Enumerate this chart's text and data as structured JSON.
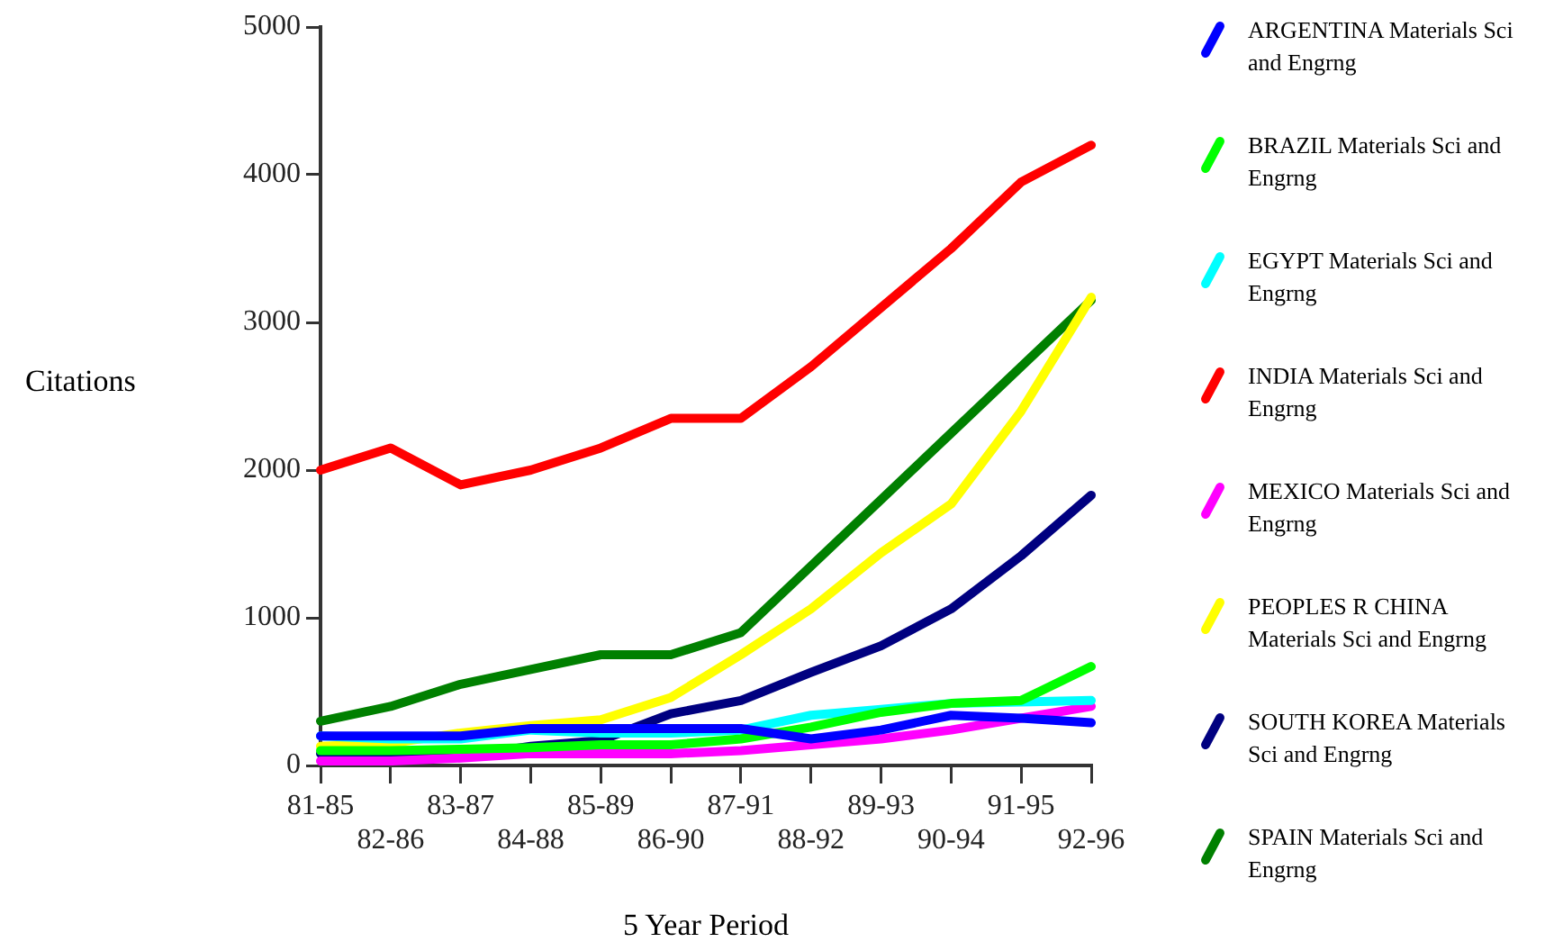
{
  "chart_data": {
    "type": "line",
    "xlabel": "5 Year Period",
    "ylabel": "Citations",
    "categories": [
      "81-85",
      "82-86",
      "83-87",
      "84-88",
      "85-89",
      "86-90",
      "87-91",
      "88-92",
      "89-93",
      "90-94",
      "91-95",
      "92-96"
    ],
    "ylim": [
      0,
      5000
    ],
    "yticks": [
      0,
      1000,
      2000,
      3000,
      4000,
      5000
    ],
    "grid": false,
    "legend": "right",
    "marker": "none",
    "line_style": "solid",
    "series": [
      {
        "name": "ARGENTINA Materials Sci and Engrng",
        "color": "#0000ff",
        "values": [
          200,
          200,
          200,
          250,
          250,
          250,
          250,
          180,
          240,
          340,
          320,
          290
        ]
      },
      {
        "name": "BRAZIL Materials Sci and Engrng",
        "color": "#00ff00",
        "values": [
          100,
          100,
          110,
          120,
          140,
          140,
          180,
          260,
          360,
          420,
          440,
          670
        ]
      },
      {
        "name": "EGYPT Materials Sci and Engrng",
        "color": "#00ffff",
        "values": [
          200,
          180,
          180,
          240,
          220,
          220,
          240,
          340,
          380,
          420,
          430,
          440
        ]
      },
      {
        "name": "INDIA Materials Sci and Engrng",
        "color": "#ff0000",
        "values": [
          2000,
          2150,
          1900,
          2000,
          2150,
          2350,
          2350,
          2700,
          3100,
          3500,
          3950,
          4200
        ]
      },
      {
        "name": "MEXICO Materials Sci and Engrng",
        "color": "#ff00ff",
        "values": [
          30,
          30,
          50,
          80,
          80,
          80,
          100,
          140,
          180,
          240,
          320,
          400
        ]
      },
      {
        "name": "PEOPLES R CHINA Materials Sci and Engrng",
        "color": "#ffff00",
        "values": [
          130,
          150,
          220,
          270,
          310,
          460,
          750,
          1060,
          1440,
          1770,
          2400,
          3170
        ]
      },
      {
        "name": "SOUTH KOREA Materials Sci and Engrng",
        "color": "#000080",
        "values": [
          80,
          70,
          60,
          130,
          170,
          350,
          440,
          630,
          810,
          1060,
          1420,
          1830
        ]
      },
      {
        "name": "SPAIN Materials Sci and Engrng",
        "color": "#008000",
        "values": [
          300,
          400,
          550,
          650,
          750,
          750,
          900,
          1350,
          1800,
          2250,
          2700,
          3150
        ]
      }
    ]
  }
}
